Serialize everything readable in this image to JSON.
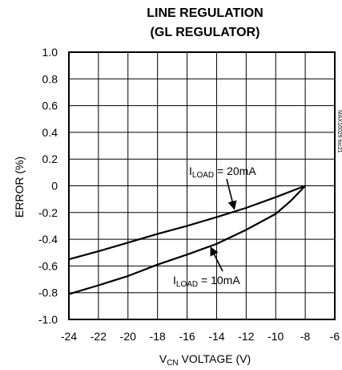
{
  "chart_data": {
    "type": "line",
    "title_line1": "LINE REGULATION",
    "title_line2": "(GL REGULATOR)",
    "xlabel_main": "V",
    "xlabel_sub": "CN",
    "xlabel_rest": " VOLTAGE (V)",
    "ylabel": "ERROR (%)",
    "xlim": [
      -24,
      -6
    ],
    "ylim": [
      -1.0,
      1.0
    ],
    "x_ticks": [
      -24,
      -22,
      -20,
      -18,
      -16,
      -14,
      -12,
      -10,
      -8,
      -6
    ],
    "x_tick_labels": [
      "-24",
      "-22",
      "-20",
      "-18",
      "-16",
      "-14",
      "-12",
      "-10",
      "-8",
      "-6"
    ],
    "y_ticks": [
      1.0,
      0.8,
      0.6,
      0.4,
      0.2,
      0,
      -0.2,
      -0.4,
      -0.6,
      -0.8,
      -1.0
    ],
    "y_tick_labels": [
      "1.0",
      "0.8",
      "0.6",
      "0.4",
      "0.2",
      "0",
      "-0.2",
      "-0.4",
      "-0.6",
      "-0.8",
      "-1.0"
    ],
    "grid": true,
    "side_id": "MAX16029 toc21",
    "series": [
      {
        "name": "ILOAD = 20mA",
        "label_main": "I",
        "label_sub": "LOAD",
        "label_rest": " = 20mA",
        "x": [
          -24,
          -22,
          -20,
          -18,
          -16,
          -14,
          -12,
          -10,
          -8
        ],
        "y": [
          -0.55,
          -0.49,
          -0.425,
          -0.36,
          -0.3,
          -0.235,
          -0.165,
          -0.085,
          0.0
        ]
      },
      {
        "name": "ILOAD = 10mA",
        "label_main": "I",
        "label_sub": "LOAD",
        "label_rest": " = 10mA",
        "x": [
          -24,
          -22,
          -20,
          -18,
          -16,
          -14,
          -12,
          -10,
          -9,
          -8
        ],
        "y": [
          -0.81,
          -0.745,
          -0.675,
          -0.59,
          -0.515,
          -0.435,
          -0.33,
          -0.21,
          -0.115,
          0.0
        ]
      }
    ]
  }
}
